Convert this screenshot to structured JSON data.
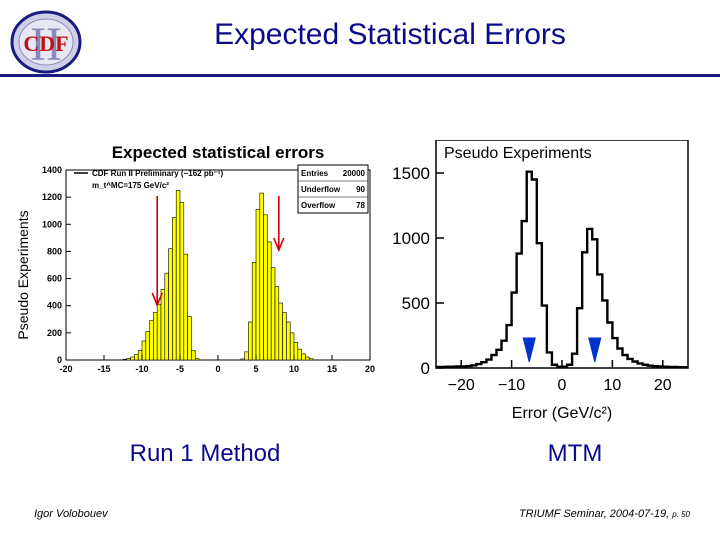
{
  "slide": {
    "title": "Expected Statistical Errors",
    "logo_text": "CDF",
    "logo_numeral": "II",
    "left_caption": "Run 1 Method",
    "right_caption": "MTM",
    "author": "Igor Volobouev",
    "footer": "TRIUMF Seminar, 2004-07-19,",
    "page_label": "p. 50"
  },
  "colors": {
    "title": "#0a0a8c",
    "rule": "#1a1a80",
    "histogram_fill": "#ffff00",
    "marker_arrow_left": "#cc0000",
    "marker_arrow_right": "#0033cc"
  },
  "chart_data": [
    {
      "type": "bar",
      "title": "Expected statistical errors",
      "ylabel": "Pseudo Experiments",
      "xlabel": "Error (GeV/c²)",
      "xlim": [
        -20,
        20
      ],
      "ylim": [
        0,
        1400
      ],
      "xticks": [
        -20,
        -15,
        -10,
        -5,
        0,
        5,
        10,
        15,
        20
      ],
      "yticks": [
        0,
        200,
        400,
        600,
        800,
        1000,
        1200,
        1400
      ],
      "legend_text": [
        "CDF Run II Preliminary (~162 pb⁻¹)",
        "m_t^MC=175 GeV/c²"
      ],
      "stats": {
        "Entries": "20000",
        "Underflow": "90",
        "Overflow": "78"
      },
      "arrows_x": [
        -8.0,
        8.0
      ],
      "bin_width": 0.5,
      "bins": [
        [
          -12.5,
          5
        ],
        [
          -12.0,
          12
        ],
        [
          -11.5,
          22
        ],
        [
          -11.0,
          40
        ],
        [
          -10.5,
          70
        ],
        [
          -10.0,
          140
        ],
        [
          -9.5,
          210
        ],
        [
          -9.0,
          290
        ],
        [
          -8.5,
          350
        ],
        [
          -8.0,
          410
        ],
        [
          -7.5,
          520
        ],
        [
          -7.0,
          640
        ],
        [
          -6.5,
          820
        ],
        [
          -6.0,
          1050
        ],
        [
          -5.5,
          1250
        ],
        [
          -5.0,
          1160
        ],
        [
          -4.5,
          780
        ],
        [
          -4.0,
          320
        ],
        [
          -3.5,
          70
        ],
        [
          -3.0,
          10
        ],
        [
          3.0,
          8
        ],
        [
          3.5,
          60
        ],
        [
          4.0,
          280
        ],
        [
          4.5,
          720
        ],
        [
          5.0,
          1110
        ],
        [
          5.5,
          1230
        ],
        [
          6.0,
          1070
        ],
        [
          6.5,
          870
        ],
        [
          7.0,
          680
        ],
        [
          7.5,
          540
        ],
        [
          8.0,
          420
        ],
        [
          8.5,
          350
        ],
        [
          9.0,
          280
        ],
        [
          9.5,
          200
        ],
        [
          10.0,
          130
        ],
        [
          10.5,
          80
        ],
        [
          11.0,
          45
        ],
        [
          11.5,
          22
        ],
        [
          12.0,
          10
        ]
      ]
    },
    {
      "type": "line",
      "title": "Pseudo Experiments",
      "xlabel": "Error (GeV/c²)",
      "xlim": [
        -25,
        25
      ],
      "ylim": [
        0,
        1600
      ],
      "xticks": [
        -20,
        -10,
        0,
        10,
        20
      ],
      "yticks": [
        0,
        500,
        1000,
        1500
      ],
      "arrows_x": [
        -6.5,
        6.5
      ],
      "bin_width": 1,
      "bins": [
        [
          -25,
          8
        ],
        [
          -24,
          8
        ],
        [
          -23,
          10
        ],
        [
          -22,
          10
        ],
        [
          -21,
          12
        ],
        [
          -20,
          12
        ],
        [
          -19,
          15
        ],
        [
          -18,
          20
        ],
        [
          -17,
          30
        ],
        [
          -16,
          45
        ],
        [
          -15,
          65
        ],
        [
          -14,
          100
        ],
        [
          -13,
          140
        ],
        [
          -12,
          210
        ],
        [
          -11,
          330
        ],
        [
          -10,
          580
        ],
        [
          -9,
          880
        ],
        [
          -8,
          1130
        ],
        [
          -7,
          1510
        ],
        [
          -6,
          1450
        ],
        [
          -5,
          960
        ],
        [
          -4,
          480
        ],
        [
          -3,
          120
        ],
        [
          -2,
          25
        ],
        [
          -1,
          10
        ],
        [
          0,
          10
        ],
        [
          1,
          25
        ],
        [
          2,
          110
        ],
        [
          3,
          460
        ],
        [
          4,
          890
        ],
        [
          5,
          1070
        ],
        [
          6,
          990
        ],
        [
          7,
          720
        ],
        [
          8,
          520
        ],
        [
          9,
          350
        ],
        [
          10,
          230
        ],
        [
          11,
          150
        ],
        [
          12,
          100
        ],
        [
          13,
          70
        ],
        [
          14,
          50
        ],
        [
          15,
          35
        ],
        [
          16,
          25
        ],
        [
          17,
          18
        ],
        [
          18,
          14
        ],
        [
          19,
          12
        ],
        [
          20,
          10
        ],
        [
          21,
          8
        ],
        [
          22,
          8
        ],
        [
          23,
          6
        ],
        [
          24,
          6
        ]
      ]
    }
  ]
}
